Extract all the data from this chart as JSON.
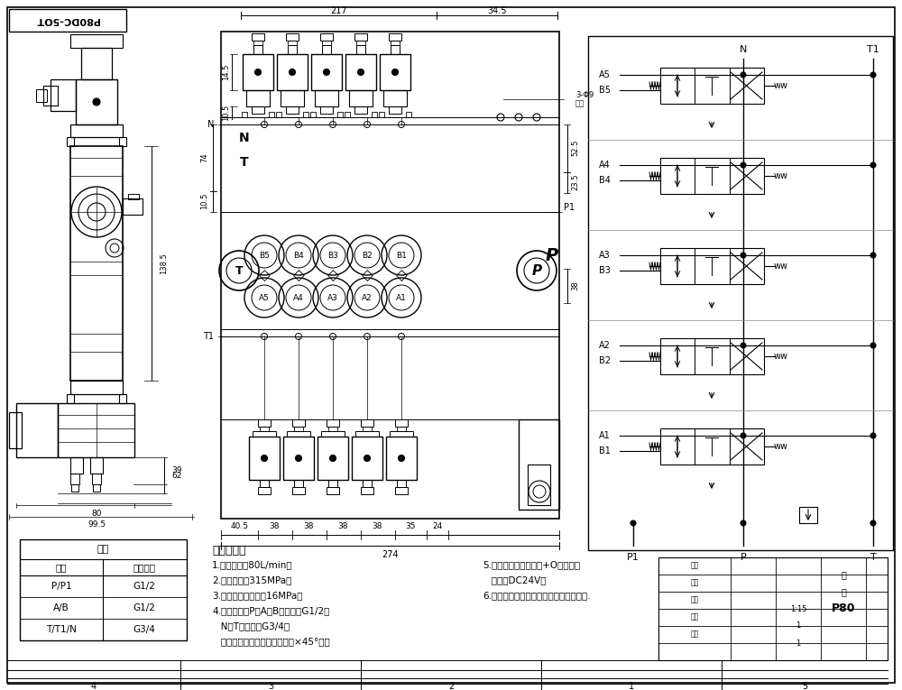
{
  "title": "P80DC-5OT",
  "background_color": "#ffffff",
  "line_color": "#000000",
  "tech_req_title": "技术要求：",
  "tech_req_lines": [
    "1.额定流量：80L/min；",
    "2.额定压力：315MPa；",
    "3.安全阀调定压力：16MPa；",
    "4.油口尺寸：P、A、B油口均为G1/2；",
    "   N、T油口均为G3/4；",
    "   油口均为平面密封，油孔口倒×45°角；"
  ],
  "tech_req_col2": [
    "5.控制方式：电磁控制+O型回杆；",
    "   电压：DC24V；",
    "6.阀体表面磷化处理，安全阀及螺堡镀镀."
  ],
  "table_header": "阀体",
  "table_col1": "接口",
  "table_col2": "螺纹规格",
  "table_rows": [
    [
      "P/P1",
      "G1/2"
    ],
    [
      "A/B",
      "G1/2"
    ],
    [
      "T/T1/N",
      "G3/4"
    ]
  ]
}
